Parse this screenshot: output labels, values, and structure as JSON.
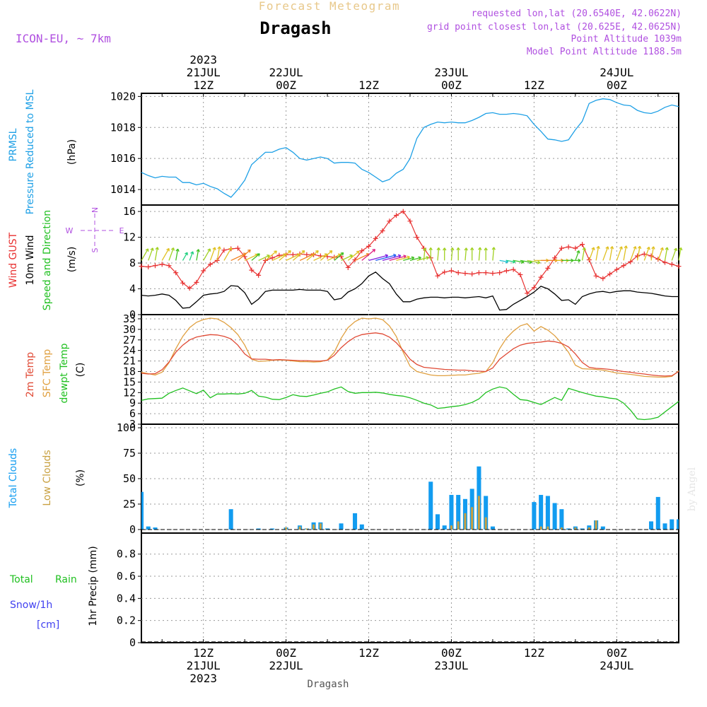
{
  "header": {
    "product": "Forecast Meteogram",
    "location": "Dragash",
    "model": "ICON-EU, ~ 7km",
    "requested": "requested lon,lat (20.6540E, 42.0622N)",
    "grid_point": "grid point closest lon,lat (20.625E, 42.0625N)",
    "point_alt": "Point Altitude 1039m",
    "model_alt": "Model Point Altitude 1188.5m",
    "footer_location": "Dragash",
    "watermark": "by Angel"
  },
  "colors": {
    "pressure": "#1ea0e6",
    "gust": "#e83030",
    "wind": "#000000",
    "t2m": "#e04a35",
    "sfc": "#e0a040",
    "dewpt": "#20c020",
    "total_clouds": "#129cf0",
    "low_clouds": "#c8a040",
    "rain": "#20c020",
    "snow": "#4040f0",
    "meta": "#b050e0"
  },
  "chart_data": {
    "type": "line",
    "title": "Forecast Meteogram Dragash",
    "x_axis": {
      "unit": "hours since 2023-07-21 00Z",
      "range": [
        3,
        81
      ],
      "top_ticks": [
        {
          "hours": 12,
          "lines": [
            "2023",
            "21JUL",
            "12Z"
          ]
        },
        {
          "hours": 24,
          "lines": [
            "22JUL",
            "00Z"
          ]
        },
        {
          "hours": 36,
          "lines": [
            "12Z"
          ]
        },
        {
          "hours": 48,
          "lines": [
            "23JUL",
            "00Z"
          ]
        },
        {
          "hours": 60,
          "lines": [
            "12Z"
          ]
        },
        {
          "hours": 72,
          "lines": [
            "24JUL",
            "00Z"
          ]
        }
      ],
      "bottom_ticks": [
        {
          "hours": 12,
          "lines": [
            "12Z",
            "21JUL",
            "2023"
          ]
        },
        {
          "hours": 24,
          "lines": [
            "00Z",
            "22JUL"
          ]
        },
        {
          "hours": 36,
          "lines": [
            "12Z"
          ]
        },
        {
          "hours": 48,
          "lines": [
            "00Z",
            "23JUL"
          ]
        },
        {
          "hours": 60,
          "lines": [
            "12Z"
          ]
        },
        {
          "hours": 72,
          "lines": [
            "00Z",
            "24JUL"
          ]
        }
      ]
    },
    "pressure": {
      "ylabel_lines": [
        "PRMSL",
        "Pressure Reduced to MSL"
      ],
      "unit": "(hPa)",
      "ylim": [
        1013,
        1020.2
      ],
      "ticks": [
        1014,
        1016,
        1018,
        1020
      ],
      "x": [
        3,
        4,
        5,
        6,
        7,
        8,
        9,
        10,
        11,
        12,
        13,
        14,
        15,
        16,
        17,
        18,
        19,
        20,
        21,
        22,
        23,
        24,
        25,
        26,
        27,
        28,
        29,
        30,
        31,
        32,
        33,
        34,
        35,
        36,
        37,
        38,
        39,
        40,
        41,
        42,
        43,
        44,
        45,
        46,
        47,
        48,
        49,
        50,
        51,
        52,
        53,
        54,
        55,
        56,
        57,
        58,
        59,
        60,
        61,
        62,
        63,
        64,
        65,
        66,
        67,
        68,
        69,
        70,
        71,
        72,
        73,
        74,
        75,
        76,
        77,
        78,
        79,
        80,
        81
      ],
      "y": [
        1015.1,
        1014.9,
        1014.75,
        1014.85,
        1014.8,
        1014.8,
        1014.45,
        1014.45,
        1014.3,
        1014.4,
        1014.2,
        1014.05,
        1013.75,
        1013.5,
        1014.0,
        1014.6,
        1015.6,
        1016.0,
        1016.4,
        1016.4,
        1016.6,
        1016.7,
        1016.4,
        1016.0,
        1015.9,
        1016.0,
        1016.1,
        1016.0,
        1015.7,
        1015.75,
        1015.75,
        1015.7,
        1015.3,
        1015.1,
        1014.8,
        1014.5,
        1014.65,
        1015.05,
        1015.3,
        1016.0,
        1017.3,
        1018.0,
        1018.2,
        1018.35,
        1018.3,
        1018.35,
        1018.3,
        1018.3,
        1018.45,
        1018.65,
        1018.9,
        1018.95,
        1018.85,
        1018.85,
        1018.9,
        1018.85,
        1018.75,
        1018.2,
        1017.75,
        1017.25,
        1017.2,
        1017.1,
        1017.2,
        1017.85,
        1018.4,
        1019.55,
        1019.75,
        1019.85,
        1019.8,
        1019.6,
        1019.45,
        1019.4,
        1019.1,
        1018.95,
        1018.9,
        1019.05,
        1019.3,
        1019.45,
        1019.35
      ]
    },
    "wind": {
      "ylabel_gust": "Wind GUST",
      "ylabel_wind": "10m Wind",
      "ylabel_dir": "Speed and Direction",
      "unit": "(m/s)",
      "compass": {
        "n": "N",
        "s": "S",
        "w": "W",
        "e": "E"
      },
      "ylim": [
        0,
        17
      ],
      "ticks": [
        0,
        4,
        8,
        12,
        16
      ],
      "x": [
        3,
        4,
        5,
        6,
        7,
        8,
        9,
        10,
        11,
        12,
        13,
        14,
        15,
        16,
        17,
        18,
        19,
        20,
        21,
        22,
        23,
        24,
        25,
        26,
        27,
        28,
        29,
        30,
        31,
        32,
        33,
        34,
        35,
        36,
        37,
        38,
        39,
        40,
        41,
        42,
        43,
        44,
        45,
        46,
        47,
        48,
        49,
        50,
        51,
        52,
        53,
        54,
        55,
        56,
        57,
        58,
        59,
        60,
        61,
        62,
        63,
        64,
        65,
        66,
        67,
        68,
        69,
        70,
        71,
        72,
        73,
        74,
        75,
        76,
        77,
        78,
        79,
        80,
        81
      ],
      "gust": [
        7.5,
        7.4,
        7.6,
        7.8,
        7.6,
        6.5,
        4.9,
        4.1,
        5.0,
        6.8,
        7.8,
        8.4,
        10.0,
        10.2,
        10.3,
        9.0,
        6.9,
        6.1,
        8.4,
        8.8,
        9.2,
        9.3,
        9.3,
        9.4,
        9.3,
        9.3,
        9.1,
        9.0,
        8.9,
        9.0,
        7.3,
        8.5,
        9.9,
        10.6,
        11.8,
        13.0,
        14.5,
        15.4,
        16.0,
        14.5,
        12.0,
        10.3,
        8.8,
        6.0,
        6.6,
        6.8,
        6.5,
        6.4,
        6.3,
        6.5,
        6.5,
        6.4,
        6.5,
        6.8,
        7.0,
        6.2,
        3.3,
        4.2,
        5.8,
        7.2,
        8.8,
        10.3,
        10.5,
        10.3,
        10.9,
        8.5,
        6.0,
        5.6,
        6.3,
        7.0,
        7.6,
        8.2,
        9.1,
        9.4,
        9.1,
        8.6,
        8.1,
        7.8,
        7.5
      ],
      "speed": [
        3.0,
        2.9,
        3.0,
        3.2,
        3.0,
        2.2,
        1.0,
        1.1,
        2.0,
        3.0,
        3.2,
        3.3,
        3.6,
        4.5,
        4.4,
        3.4,
        1.6,
        2.4,
        3.6,
        3.8,
        3.8,
        3.8,
        3.8,
        3.9,
        3.8,
        3.8,
        3.8,
        3.6,
        2.3,
        2.5,
        3.5,
        4.0,
        4.8,
        6.0,
        6.6,
        5.6,
        4.8,
        3.2,
        2.0,
        2.0,
        2.4,
        2.6,
        2.7,
        2.7,
        2.6,
        2.7,
        2.7,
        2.6,
        2.7,
        2.8,
        2.6,
        2.9,
        0.7,
        0.8,
        1.6,
        2.2,
        2.8,
        3.5,
        4.4,
        4.0,
        3.2,
        2.2,
        2.3,
        1.6,
        2.8,
        3.2,
        3.5,
        3.6,
        3.4,
        3.6,
        3.7,
        3.7,
        3.5,
        3.4,
        3.3,
        3.1,
        2.9,
        2.8,
        2.8
      ]
    },
    "temperature": {
      "ylabel_t2m": "2m Temp",
      "ylabel_sfc": "SFC Temp",
      "ylabel_dew": "dewpt Temp",
      "unit": "(C)",
      "ylim": [
        3,
        34.2
      ],
      "ticks": [
        3,
        6,
        9,
        12,
        15,
        18,
        21,
        24,
        27,
        30,
        33
      ],
      "x": [
        3,
        4,
        5,
        6,
        7,
        8,
        9,
        10,
        11,
        12,
        13,
        14,
        15,
        16,
        17,
        18,
        19,
        20,
        21,
        22,
        23,
        24,
        25,
        26,
        27,
        28,
        29,
        30,
        31,
        32,
        33,
        34,
        35,
        36,
        37,
        38,
        39,
        40,
        41,
        42,
        43,
        44,
        45,
        46,
        47,
        48,
        49,
        50,
        51,
        52,
        53,
        54,
        55,
        56,
        57,
        58,
        59,
        60,
        61,
        62,
        63,
        64,
        65,
        66,
        67,
        68,
        69,
        70,
        71,
        72,
        73,
        74,
        75,
        76,
        77,
        78,
        79,
        80,
        81
      ],
      "t2m": [
        17.5,
        17.3,
        17.4,
        18.5,
        20.7,
        23.5,
        25.5,
        27.0,
        27.8,
        28.2,
        28.5,
        28.4,
        28.0,
        27.3,
        25.5,
        23.0,
        21.6,
        21.5,
        21.5,
        21.3,
        21.4,
        21.3,
        21.2,
        21.1,
        21.1,
        21.0,
        21.0,
        21.2,
        22.6,
        24.8,
        26.5,
        27.8,
        28.5,
        28.8,
        29.0,
        28.7,
        27.8,
        26.2,
        24.0,
        21.5,
        20.0,
        19.2,
        19.0,
        18.8,
        18.6,
        18.5,
        18.4,
        18.4,
        18.2,
        18.1,
        18.0,
        19.0,
        21.5,
        23.0,
        24.5,
        25.5,
        26.0,
        26.2,
        26.4,
        26.7,
        26.5,
        26.0,
        25.0,
        23.0,
        20.6,
        19.2,
        18.9,
        18.8,
        18.6,
        18.3,
        18.0,
        17.8,
        17.5,
        17.3,
        17.0,
        16.8,
        16.7,
        16.8,
        18.0
      ],
      "sfc": [
        17.8,
        17.4,
        17.0,
        17.8,
        20.5,
        24.5,
        28.0,
        30.5,
        32.0,
        32.8,
        33.2,
        33.0,
        32.0,
        30.5,
        28.5,
        25.5,
        21.5,
        20.9,
        21.0,
        21.2,
        21.3,
        21.2,
        21.0,
        20.8,
        20.8,
        20.7,
        20.8,
        21.3,
        23.5,
        27.5,
        30.5,
        32.2,
        33.2,
        33.0,
        33.2,
        32.8,
        31.0,
        28.0,
        23.5,
        19.5,
        18.0,
        17.5,
        17.0,
        16.8,
        16.8,
        16.9,
        17.0,
        17.0,
        17.3,
        17.5,
        18.0,
        20.5,
        24.5,
        27.5,
        29.5,
        31.0,
        31.6,
        29.5,
        30.8,
        29.8,
        28.2,
        26.0,
        23.5,
        19.8,
        18.8,
        18.7,
        18.6,
        18.4,
        18.0,
        17.6,
        17.4,
        17.2,
        16.9,
        16.6,
        16.5,
        16.4,
        16.4,
        16.6,
        18.2
      ],
      "dewpt": [
        9.8,
        10.2,
        10.3,
        10.4,
        11.8,
        12.6,
        13.3,
        12.5,
        11.7,
        12.7,
        10.5,
        11.6,
        11.6,
        11.7,
        11.6,
        11.8,
        12.6,
        11.0,
        10.7,
        10.1,
        10.0,
        10.6,
        11.4,
        11.0,
        10.9,
        11.3,
        11.8,
        12.2,
        13.0,
        13.6,
        12.3,
        11.8,
        12.0,
        12.0,
        12.1,
        11.9,
        11.5,
        11.2,
        11.0,
        10.5,
        9.8,
        9.0,
        8.5,
        7.5,
        7.7,
        8.0,
        8.2,
        8.6,
        9.2,
        10.2,
        12.0,
        13.0,
        13.6,
        13.2,
        11.5,
        10.0,
        9.8,
        9.2,
        8.6,
        9.6,
        10.6,
        9.8,
        13.2,
        12.6,
        12.0,
        11.5,
        11.0,
        10.8,
        10.4,
        10.2,
        9.0,
        7.0,
        4.5,
        4.3,
        4.5,
        5.0,
        6.5,
        8.0,
        9.5
      ]
    },
    "clouds": {
      "ylabel_total": "Total Clouds",
      "ylabel_low": "Low Clouds",
      "unit": "(%)",
      "ylim": [
        -3.5,
        103.5
      ],
      "ticks": [
        0,
        25,
        50,
        75,
        100
      ],
      "x": [
        3,
        4,
        5,
        6,
        7,
        8,
        9,
        10,
        11,
        12,
        13,
        14,
        15,
        16,
        17,
        18,
        19,
        20,
        21,
        22,
        23,
        24,
        25,
        26,
        27,
        28,
        29,
        30,
        31,
        32,
        33,
        34,
        35,
        36,
        37,
        38,
        39,
        40,
        41,
        42,
        43,
        44,
        45,
        46,
        47,
        48,
        49,
        50,
        51,
        52,
        53,
        54,
        55,
        56,
        57,
        58,
        59,
        60,
        61,
        62,
        63,
        64,
        65,
        66,
        67,
        68,
        69,
        70,
        71,
        72,
        73,
        74,
        75,
        76,
        77,
        78,
        79,
        80,
        81
      ],
      "total": [
        37,
        3,
        2,
        0,
        0,
        0,
        0,
        0,
        0,
        0,
        0,
        0,
        0,
        20,
        0,
        0,
        0,
        1,
        0,
        1,
        0,
        2,
        0,
        4,
        1,
        7,
        7,
        1,
        0,
        6,
        0,
        16,
        5,
        0,
        0,
        0,
        0,
        0,
        0,
        0,
        0,
        0,
        47,
        15,
        4,
        34,
        34,
        30,
        40,
        62,
        33,
        3,
        0,
        0,
        0,
        0,
        0,
        27,
        34,
        33,
        26,
        20,
        1,
        3,
        1,
        4,
        9,
        3,
        0,
        0,
        0,
        0,
        0,
        0,
        8,
        32,
        6,
        10,
        10
      ],
      "low": [
        0,
        0,
        0,
        0,
        0,
        0,
        0,
        0,
        0,
        0,
        0,
        0,
        0,
        0,
        0,
        0,
        0,
        0,
        0,
        0,
        0,
        2,
        0,
        3,
        1,
        5,
        6,
        0,
        0,
        0,
        0,
        0,
        0,
        0,
        0,
        0,
        0,
        0,
        0,
        0,
        0,
        0,
        0,
        0,
        0,
        4,
        8,
        16,
        22,
        33,
        12,
        0,
        0,
        0,
        0,
        0,
        0,
        0,
        3,
        3,
        0,
        2,
        0,
        2,
        0,
        2,
        9,
        0,
        0,
        0,
        0,
        0,
        0,
        0,
        0,
        0,
        0,
        0,
        0
      ]
    },
    "precip": {
      "ylabel_rain_a": "Total",
      "ylabel_rain_b": "Rain",
      "ylabel_snow_a": "Snow/1h",
      "ylabel_snow_b": "[cm]",
      "ylabel": "1hr Precip (mm)",
      "ylim": [
        0,
        0.99
      ],
      "ticks": [
        0,
        0.2,
        0.4,
        0.6,
        0.8
      ],
      "tick_labels": [
        "0",
        "0.2",
        "0.4",
        "0.6",
        "0.8"
      ],
      "values": []
    }
  }
}
